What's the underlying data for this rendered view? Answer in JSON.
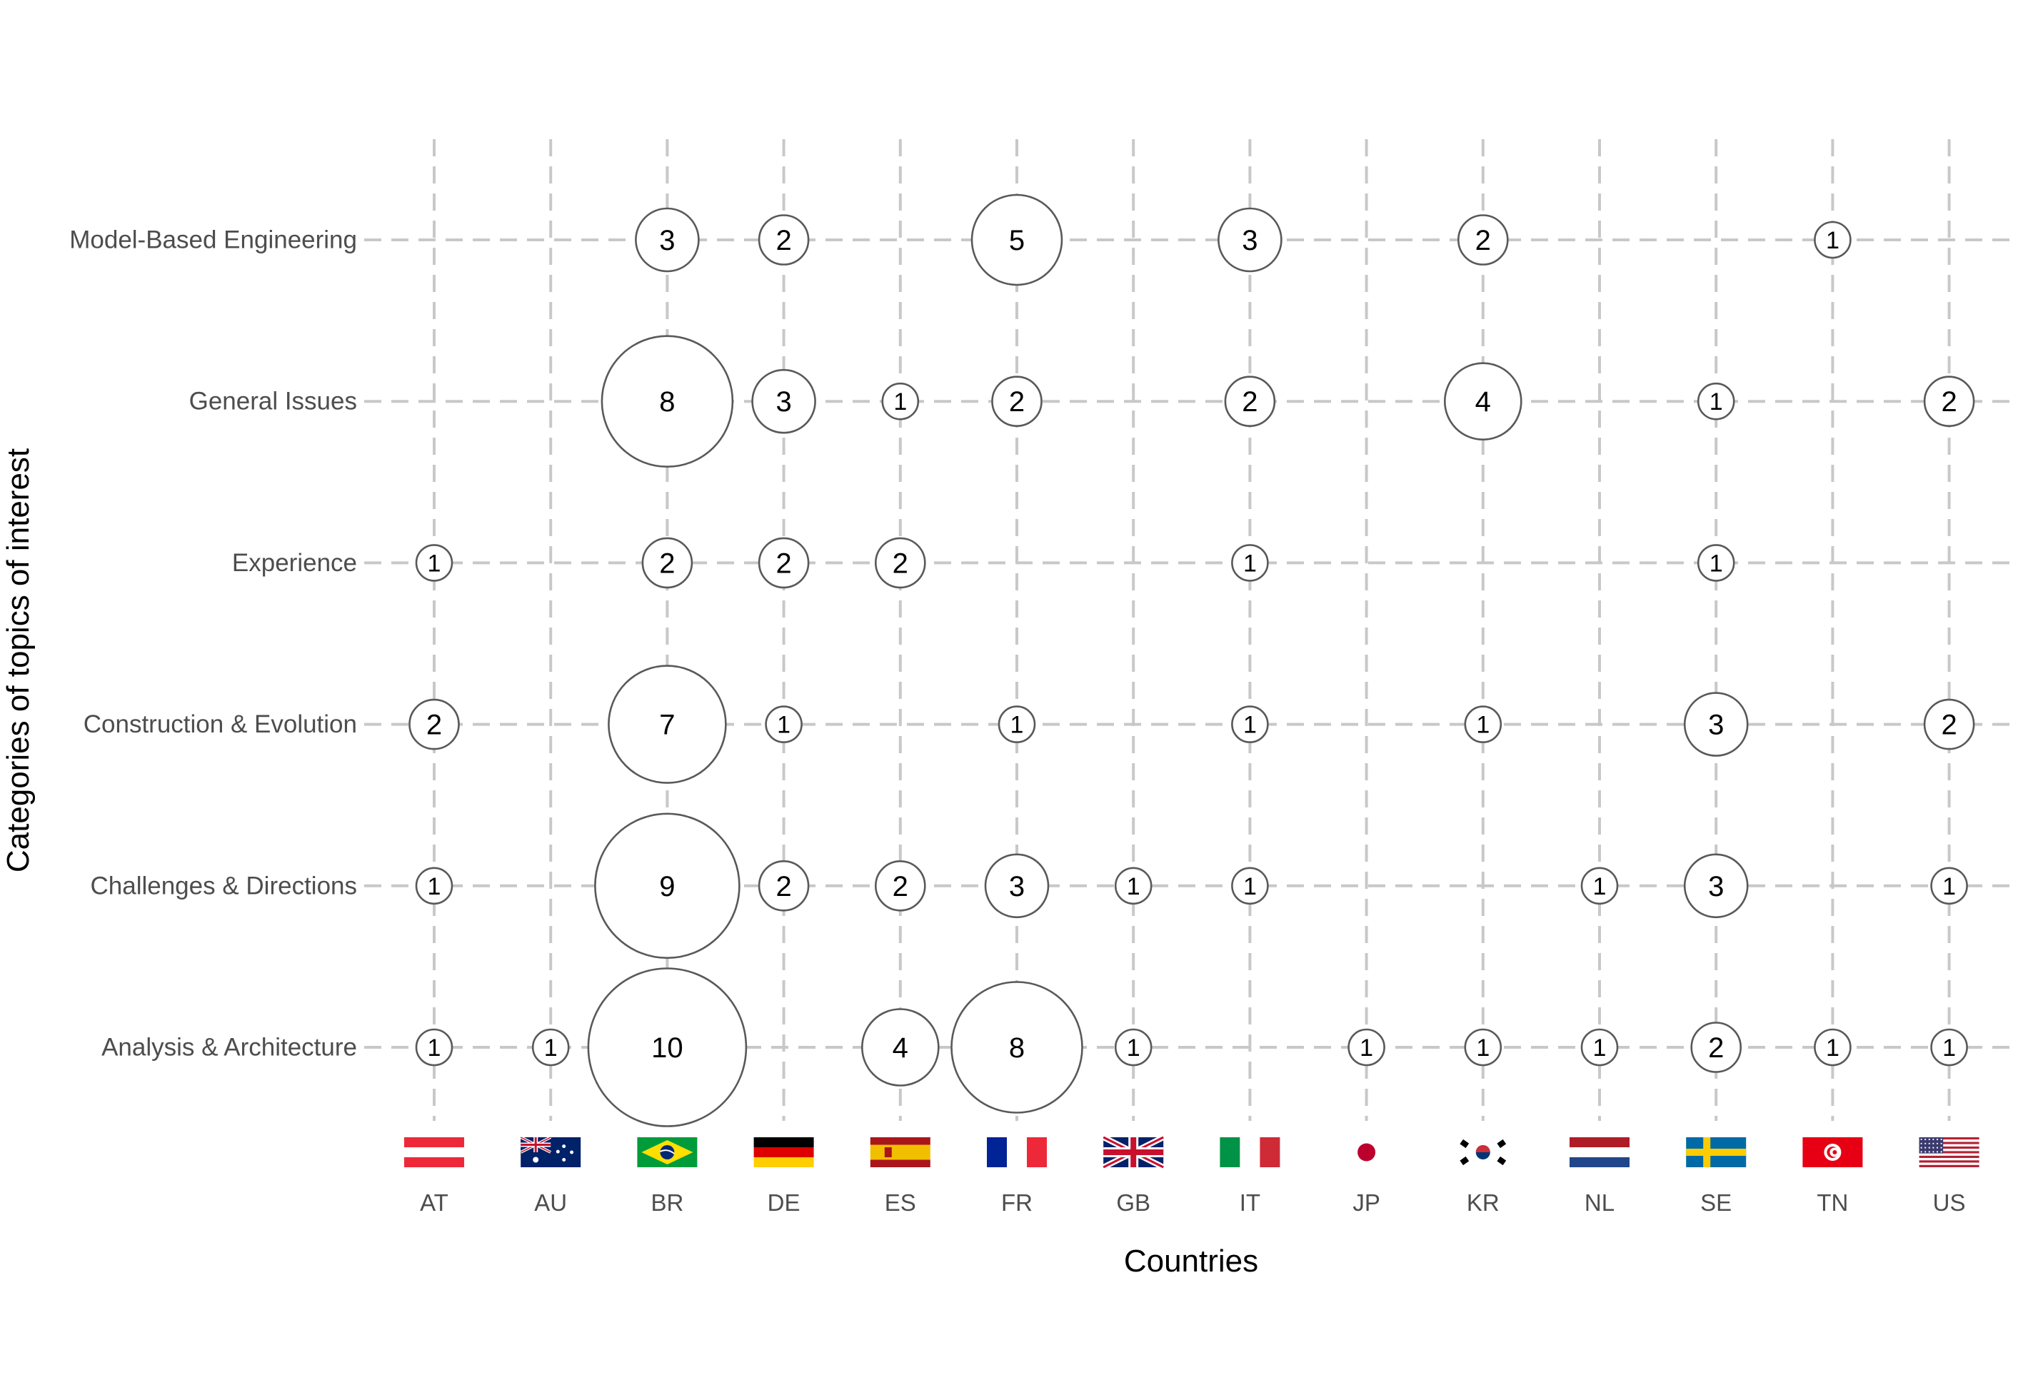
{
  "chart_data": {
    "type": "scatter",
    "subtype": "bubble",
    "xlabel": "Countries",
    "ylabel": "Categories of topics of interest",
    "x_categories": [
      "AT",
      "AU",
      "BR",
      "DE",
      "ES",
      "FR",
      "GB",
      "IT",
      "JP",
      "KR",
      "NL",
      "SE",
      "TN",
      "US"
    ],
    "y_categories": [
      "Analysis & Architecture",
      "Challenges & Directions",
      "Construction & Evolution",
      "Experience",
      "General Issues",
      "Model-Based Engineering"
    ],
    "grid": true,
    "points": [
      {
        "y": "Model-Based Engineering",
        "x": "BR",
        "value": 3
      },
      {
        "y": "Model-Based Engineering",
        "x": "DE",
        "value": 2
      },
      {
        "y": "Model-Based Engineering",
        "x": "FR",
        "value": 5
      },
      {
        "y": "Model-Based Engineering",
        "x": "IT",
        "value": 3
      },
      {
        "y": "Model-Based Engineering",
        "x": "KR",
        "value": 2
      },
      {
        "y": "Model-Based Engineering",
        "x": "TN",
        "value": 1
      },
      {
        "y": "General Issues",
        "x": "BR",
        "value": 8
      },
      {
        "y": "General Issues",
        "x": "DE",
        "value": 3
      },
      {
        "y": "General Issues",
        "x": "ES",
        "value": 1
      },
      {
        "y": "General Issues",
        "x": "FR",
        "value": 2
      },
      {
        "y": "General Issues",
        "x": "IT",
        "value": 2
      },
      {
        "y": "General Issues",
        "x": "KR",
        "value": 4
      },
      {
        "y": "General Issues",
        "x": "SE",
        "value": 1
      },
      {
        "y": "General Issues",
        "x": "US",
        "value": 2
      },
      {
        "y": "Experience",
        "x": "AT",
        "value": 1
      },
      {
        "y": "Experience",
        "x": "BR",
        "value": 2
      },
      {
        "y": "Experience",
        "x": "DE",
        "value": 2
      },
      {
        "y": "Experience",
        "x": "ES",
        "value": 2
      },
      {
        "y": "Experience",
        "x": "IT",
        "value": 1
      },
      {
        "y": "Experience",
        "x": "SE",
        "value": 1
      },
      {
        "y": "Construction & Evolution",
        "x": "AT",
        "value": 2
      },
      {
        "y": "Construction & Evolution",
        "x": "BR",
        "value": 7
      },
      {
        "y": "Construction & Evolution",
        "x": "DE",
        "value": 1
      },
      {
        "y": "Construction & Evolution",
        "x": "FR",
        "value": 1
      },
      {
        "y": "Construction & Evolution",
        "x": "IT",
        "value": 1
      },
      {
        "y": "Construction & Evolution",
        "x": "KR",
        "value": 1
      },
      {
        "y": "Construction & Evolution",
        "x": "SE",
        "value": 3
      },
      {
        "y": "Construction & Evolution",
        "x": "US",
        "value": 2
      },
      {
        "y": "Challenges & Directions",
        "x": "AT",
        "value": 1
      },
      {
        "y": "Challenges & Directions",
        "x": "BR",
        "value": 9
      },
      {
        "y": "Challenges & Directions",
        "x": "DE",
        "value": 2
      },
      {
        "y": "Challenges & Directions",
        "x": "ES",
        "value": 2
      },
      {
        "y": "Challenges & Directions",
        "x": "FR",
        "value": 3
      },
      {
        "y": "Challenges & Directions",
        "x": "GB",
        "value": 1
      },
      {
        "y": "Challenges & Directions",
        "x": "IT",
        "value": 1
      },
      {
        "y": "Challenges & Directions",
        "x": "NL",
        "value": 1
      },
      {
        "y": "Challenges & Directions",
        "x": "SE",
        "value": 3
      },
      {
        "y": "Challenges & Directions",
        "x": "US",
        "value": 1
      },
      {
        "y": "Analysis & Architecture",
        "x": "AT",
        "value": 1
      },
      {
        "y": "Analysis & Architecture",
        "x": "AU",
        "value": 1
      },
      {
        "y": "Analysis & Architecture",
        "x": "BR",
        "value": 10
      },
      {
        "y": "Analysis & Architecture",
        "x": "ES",
        "value": 4
      },
      {
        "y": "Analysis & Architecture",
        "x": "FR",
        "value": 8
      },
      {
        "y": "Analysis & Architecture",
        "x": "GB",
        "value": 1
      },
      {
        "y": "Analysis & Architecture",
        "x": "JP",
        "value": 1
      },
      {
        "y": "Analysis & Architecture",
        "x": "KR",
        "value": 1
      },
      {
        "y": "Analysis & Architecture",
        "x": "NL",
        "value": 1
      },
      {
        "y": "Analysis & Architecture",
        "x": "SE",
        "value": 2
      },
      {
        "y": "Analysis & Architecture",
        "x": "TN",
        "value": 1
      },
      {
        "y": "Analysis & Architecture",
        "x": "US",
        "value": 1
      }
    ],
    "flags": [
      "AT",
      "AU",
      "BR",
      "DE",
      "ES",
      "FR",
      "GB",
      "IT",
      "JP",
      "KR",
      "NL",
      "SE",
      "TN",
      "US"
    ]
  }
}
